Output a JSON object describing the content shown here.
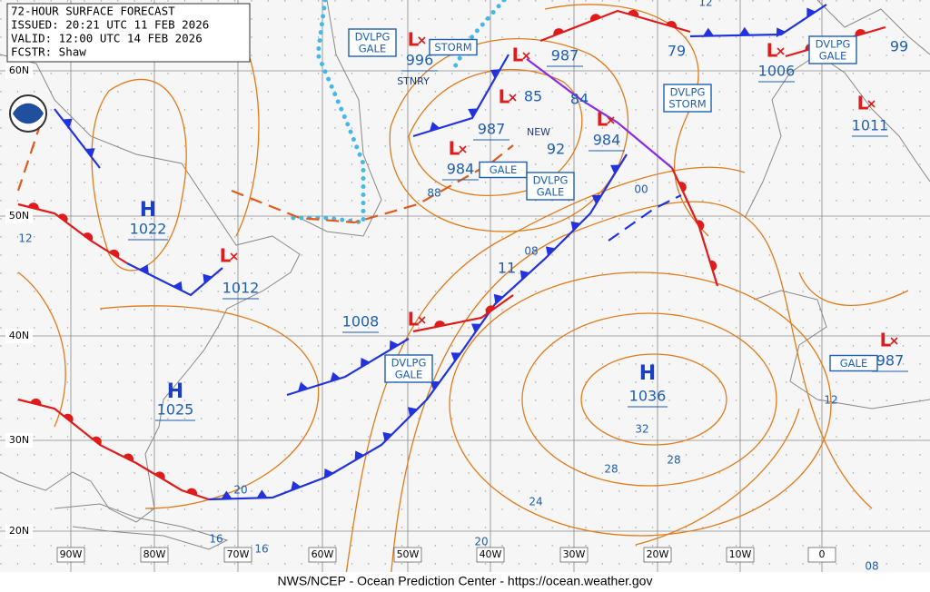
{
  "header": {
    "lines": [
      "72-HOUR SURFACE FORECAST",
      "ISSUED: 20:21 UTC 11 FEB 2026",
      "VALID: 12:00 UTC 14 FEB 2026",
      "FCSTR: Shaw"
    ]
  },
  "footer": "NWS/NCEP - Ocean Prediction Center - https://ocean.weather.gov",
  "symbols": {
    "high": "H",
    "low": "L"
  },
  "latitude_labels": [
    "60N",
    "50N",
    "40N",
    "30N",
    "20N"
  ],
  "longitude_labels": [
    "90W",
    "80W",
    "70W",
    "60W",
    "50W",
    "40W",
    "30W",
    "20W",
    "10W",
    "0"
  ],
  "highs": [
    "1022",
    "1025",
    "1036"
  ],
  "lows": [
    "996",
    "1006",
    "1011",
    "987",
    "984",
    "984",
    "987",
    "1012",
    "1008",
    "987"
  ],
  "isobar_labels": [
    "85",
    "84",
    "92",
    "79",
    "99",
    "11",
    "88",
    "00",
    "08",
    "32",
    "28",
    "28",
    "24",
    "20",
    "20",
    "16",
    "16",
    "12",
    "12",
    "08",
    "12"
  ],
  "warnings": [
    [
      "DVLPG",
      "GALE"
    ],
    [
      "STORM"
    ],
    [
      "DVLPG",
      "STORM"
    ],
    [
      "DVLPG",
      "GALE"
    ],
    [
      "GALE"
    ],
    [
      "DVLPG",
      "GALE"
    ],
    [
      "DVLPG",
      "GALE"
    ],
    [
      "GALE"
    ]
  ],
  "front_notes": [
    "STNRY",
    "NEW"
  ]
}
